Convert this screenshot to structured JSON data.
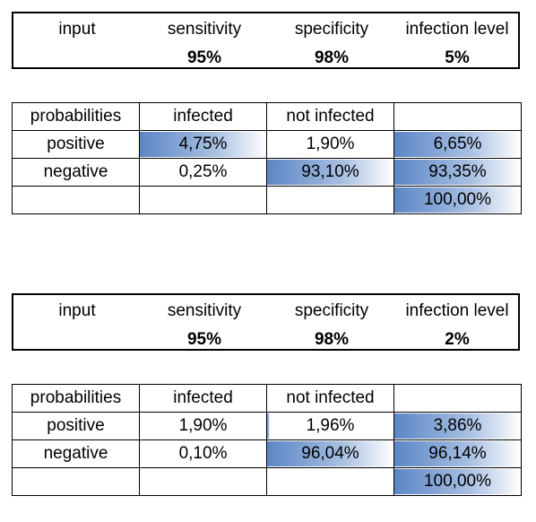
{
  "blocks": [
    {
      "input": {
        "headers": [
          "input",
          "sensitivity",
          "specificity",
          "infection level"
        ],
        "values": [
          "",
          "95%",
          "98%",
          "5%"
        ]
      },
      "table": {
        "header": [
          "probabilities",
          "infected",
          "not infected",
          ""
        ],
        "rows": [
          [
            "positive",
            "4,75%",
            "1,90%",
            "6,65%"
          ],
          [
            "negative",
            "0,25%",
            "93,10%",
            "93,35%"
          ],
          [
            "",
            "",
            "",
            "100,00%"
          ]
        ],
        "bars": [
          [
            0,
            1,
            0,
            1
          ],
          [
            0,
            0,
            1,
            1
          ],
          [
            0,
            0,
            0,
            1
          ]
        ]
      }
    },
    {
      "input": {
        "headers": [
          "input",
          "sensitivity",
          "specificity",
          "infection level"
        ],
        "values": [
          "",
          "95%",
          "98%",
          "2%"
        ]
      },
      "table": {
        "header": [
          "probabilities",
          "infected",
          "not infected",
          ""
        ],
        "rows": [
          [
            "positive",
            "1,90%",
            "1,96%",
            "3,86%"
          ],
          [
            "negative",
            "0,10%",
            "96,04%",
            "96,14%"
          ],
          [
            "",
            "",
            "",
            "100,00%"
          ]
        ],
        "bars": [
          [
            0,
            0,
            0.02,
            1
          ],
          [
            0,
            0,
            1,
            1
          ],
          [
            0,
            0,
            0,
            1
          ]
        ]
      }
    }
  ]
}
